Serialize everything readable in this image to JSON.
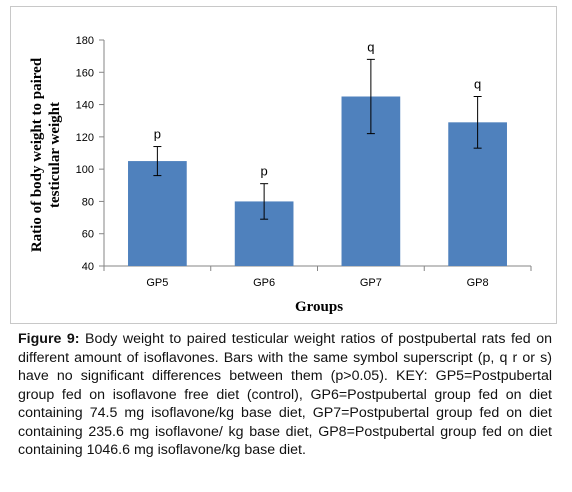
{
  "chart_data": {
    "type": "bar",
    "categories": [
      "GP5",
      "GP6",
      "GP7",
      "GP8"
    ],
    "values": [
      105,
      80,
      145,
      129
    ],
    "error_bars": [
      9,
      11,
      23,
      16
    ],
    "bar_labels": [
      "p",
      "p",
      "q",
      "q"
    ],
    "xlabel": "Groups",
    "ylabel_lines": [
      "Ratio of body weight to paired",
      "testicular weight"
    ],
    "ylim": [
      40,
      180
    ],
    "yticks": [
      "40",
      "60",
      "80",
      "100",
      "120",
      "140",
      "160",
      "180"
    ],
    "bar_color": "#4f81bd",
    "grid": false,
    "legend": "none"
  },
  "caption": {
    "label": "Figure 9:",
    "text": " Body weight to paired testicular weight ratios of postpubertal rats fed on different amount of isoflavones. Bars with the same symbol superscript (p, q r or s) have no significant differences between them (p>0.05). KEY: GP5=Postpubertal group fed on isoflavone free diet (control), GP6=Postpubertal group fed on diet containing 74.5 mg isoflavone/kg base diet, GP7=Postpubertal group fed on diet containing 235.6 mg isoflavone/ kg base diet, GP8=Postpubertal group fed on diet containing 1046.6 mg isoflavone/kg base diet."
  }
}
